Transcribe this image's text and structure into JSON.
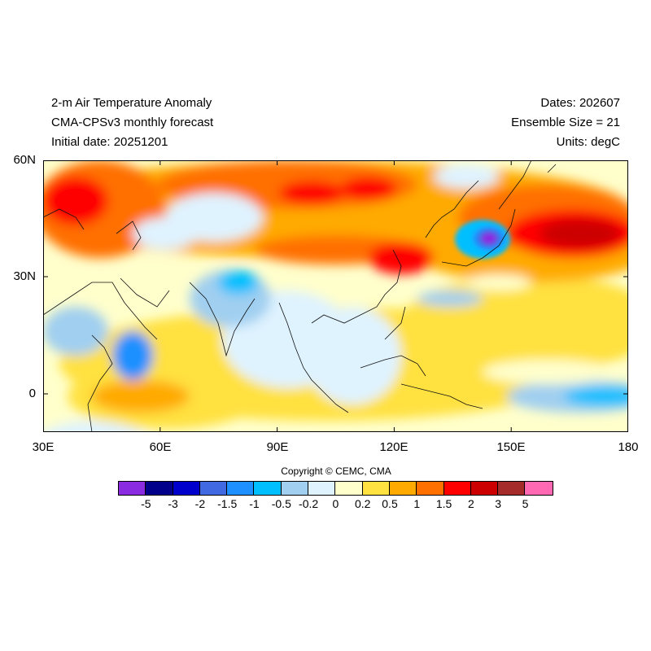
{
  "header": {
    "title": "2-m Air Temperature Anomaly",
    "model": "CMA-CPSv3 monthly forecast",
    "initial_date": "Initial date: 20251201",
    "dates": "Dates: 202607",
    "ensemble": "Ensemble Size = 21",
    "units": "Units: degC"
  },
  "map": {
    "lat_labels": [
      "60N",
      "30N",
      "0"
    ],
    "lon_labels": [
      "30E",
      "60E",
      "90E",
      "120E",
      "150E",
      "180"
    ],
    "extent": {
      "lon": [
        30,
        180
      ],
      "lat": [
        -10,
        60
      ]
    }
  },
  "copyright": "Copyright © CEMC, CMA",
  "colorbar": {
    "colors": [
      "#8a2be2",
      "#00008b",
      "#0000cd",
      "#4169e1",
      "#1e90ff",
      "#00bfff",
      "#a0cff0",
      "#dff3ff",
      "#ffffcc",
      "#ffe140",
      "#ffaa00",
      "#ff7000",
      "#ff0000",
      "#cc0000",
      "#a52a2a",
      "#ff69b4"
    ],
    "ticks": [
      "-5",
      "-3",
      "-2",
      "-1.5",
      "-1",
      "-0.5",
      "-0.2",
      "0",
      "0.2",
      "0.5",
      "1",
      "1.5",
      "2",
      "3",
      "5"
    ]
  }
}
